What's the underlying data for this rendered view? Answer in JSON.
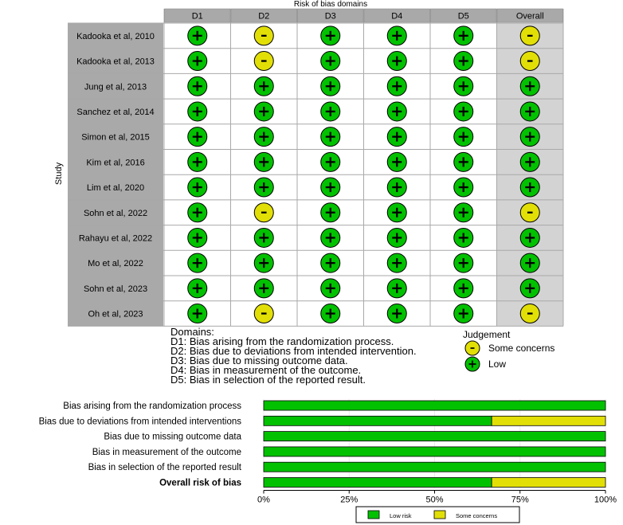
{
  "chart_data": [
    {
      "type": "table",
      "title": "Risk of bias domains",
      "ylabel": "Study",
      "columns": [
        "D1",
        "D2",
        "D3",
        "D4",
        "D5",
        "Overall"
      ],
      "studies": [
        {
          "name": "Kadooka et al, 2010",
          "judgements": [
            "low",
            "some",
            "low",
            "low",
            "low",
            "some"
          ]
        },
        {
          "name": "Kadooka et al, 2013",
          "judgements": [
            "low",
            "some",
            "low",
            "low",
            "low",
            "some"
          ]
        },
        {
          "name": "Jung et al, 2013",
          "judgements": [
            "low",
            "low",
            "low",
            "low",
            "low",
            "low"
          ]
        },
        {
          "name": "Sanchez et al, 2014",
          "judgements": [
            "low",
            "low",
            "low",
            "low",
            "low",
            "low"
          ]
        },
        {
          "name": "Simon et al, 2015",
          "judgements": [
            "low",
            "low",
            "low",
            "low",
            "low",
            "low"
          ]
        },
        {
          "name": "Kim et al, 2016",
          "judgements": [
            "low",
            "low",
            "low",
            "low",
            "low",
            "low"
          ]
        },
        {
          "name": "Lim et al, 2020",
          "judgements": [
            "low",
            "low",
            "low",
            "low",
            "low",
            "low"
          ]
        },
        {
          "name": "Sohn et al, 2022",
          "judgements": [
            "low",
            "some",
            "low",
            "low",
            "low",
            "some"
          ]
        },
        {
          "name": "Rahayu et al, 2022",
          "judgements": [
            "low",
            "low",
            "low",
            "low",
            "low",
            "low"
          ]
        },
        {
          "name": "Mo et al, 2022",
          "judgements": [
            "low",
            "low",
            "low",
            "low",
            "low",
            "low"
          ]
        },
        {
          "name": "Sohn et al, 2023",
          "judgements": [
            "low",
            "low",
            "low",
            "low",
            "low",
            "low"
          ]
        },
        {
          "name": "Oh et al, 2023",
          "judgements": [
            "low",
            "some",
            "low",
            "low",
            "low",
            "some"
          ]
        }
      ],
      "domains_title": "Domains:",
      "domains": [
        "D1: Bias arising from the randomization process.",
        "D2: Bias due to deviations from intended intervention.",
        "D3: Bias due to missing outcome data.",
        "D4: Bias in measurement of the outcome.",
        "D5: Bias in selection of the reported result."
      ],
      "judgement_title": "Judgement",
      "judgement_legend": [
        {
          "key": "some",
          "symbol": "-",
          "label": "Some concerns"
        },
        {
          "key": "low",
          "symbol": "+",
          "label": "Low"
        }
      ]
    },
    {
      "type": "bar",
      "stacked": true,
      "orientation": "horizontal",
      "categories": [
        "Bias arising from the randomization process",
        "Bias due to deviations from intended interventions",
        "Bias due to missing outcome data",
        "Bias in measurement of the outcome",
        "Bias in selection of the reported result",
        "Overall risk of bias"
      ],
      "bold_category": "Overall risk of bias",
      "series": [
        {
          "name": "Low risk",
          "key": "low",
          "values": [
            100,
            66.7,
            100,
            100,
            100,
            66.7
          ]
        },
        {
          "name": "Some concerns",
          "key": "some",
          "values": [
            0,
            33.3,
            0,
            0,
            0,
            33.3
          ]
        }
      ],
      "xlim": [
        0,
        100
      ],
      "xticks": [
        0,
        25,
        50,
        75,
        100
      ],
      "xtick_labels": [
        "0%",
        "25%",
        "50%",
        "75%",
        "100%"
      ]
    }
  ],
  "colors": {
    "low": "#02c100",
    "some": "#e2df07",
    "header": "#a9a9a9",
    "overall_col": "#d3d3d3",
    "grid_line": "#a9a9a9"
  }
}
